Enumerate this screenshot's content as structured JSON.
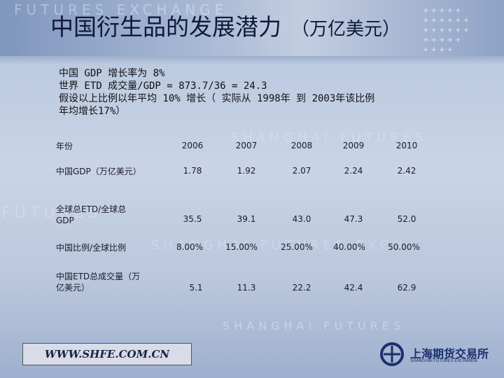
{
  "slide": {
    "title": "中国衍生品的发展潜力",
    "title_unit": "（万亿美元）",
    "intro_lines": [
      "中国 GDP 增长率为 8%",
      "世界 ETD 成交量/GDP = 873.7/36 = 24.3",
      "假设以上比例以年平均 10% 增长（ 实际从 1998年 到 2003年该比例",
      "年均增长17%）"
    ],
    "table": {
      "rows": [
        {
          "label": "年份",
          "values": [
            "2006",
            "2007",
            "2008",
            "2009",
            "2010"
          ]
        },
        {
          "label": "中国GDP（万亿美元）",
          "values": [
            "1.78",
            "1.92",
            "2.07",
            "2.24",
            "2.42"
          ]
        },
        {
          "label_lines": [
            "全球总ETD/全球总",
            "GDP"
          ],
          "values": [
            "35.5",
            "39.1",
            "43.0",
            "47.3",
            "52.0"
          ]
        },
        {
          "label": "中国比例/全球比例",
          "values": [
            "8.00%",
            "15.00%",
            "25.00%",
            "40.00%",
            "50.00%"
          ]
        },
        {
          "label_lines": [
            "中国ETD总成交量（万",
            "亿美元）"
          ],
          "values": [
            "5.1",
            "11.3",
            "22.2",
            "42.4",
            "62.9"
          ]
        }
      ]
    },
    "footer_url": "WWW.SHFE.COM.CN",
    "logo": {
      "name": "上海期货交易所",
      "subtitle": "SHANGHAI FUTURES EXCHANGE",
      "icon": "shfe-logo-icon"
    },
    "watermarks": [
      "FUTURES EXCHANGE",
      "SHANGHAI FUTURES",
      "FUTURES",
      "SHANGHAI FUTURES EXCH",
      "SHANGHAI FUTURES"
    ],
    "colors": {
      "title": "#0f1a3a",
      "text": "#1a1a2a",
      "logo": "#1b2f6e"
    }
  }
}
